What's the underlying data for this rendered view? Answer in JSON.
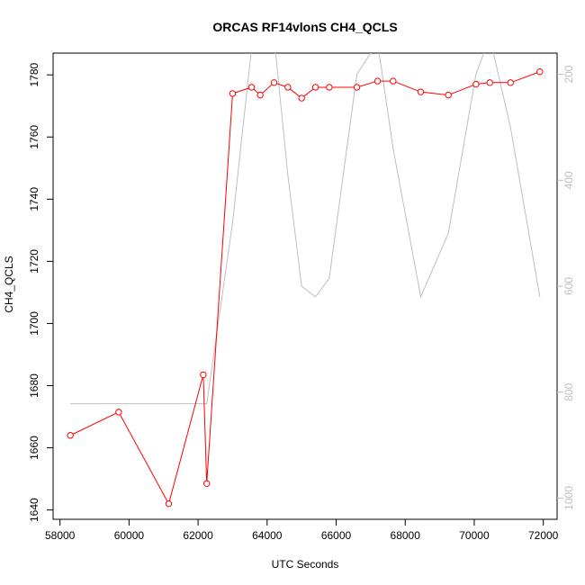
{
  "chart_data": {
    "type": "line",
    "title": "ORCAS RF14vlonS CH4_QCLS",
    "xlabel": "UTC Seconds",
    "ylabel": "CH4_QCLS",
    "xlim": [
      57800,
      72400
    ],
    "ylim": [
      1637,
      1787
    ],
    "y2lim": [
      1040,
      160
    ],
    "y2_reversed": true,
    "x_ticks": [
      58000,
      60000,
      62000,
      64000,
      66000,
      68000,
      70000,
      72000
    ],
    "y_ticks": [
      1640,
      1660,
      1680,
      1700,
      1720,
      1740,
      1760,
      1780
    ],
    "y2_ticks": [
      200,
      400,
      600,
      800,
      1000
    ],
    "grid": false,
    "series": [
      {
        "axis": "left",
        "color": "#ff0000",
        "markers": "open-circle",
        "x": [
          58300,
          59700,
          61150,
          62150,
          62250,
          63000,
          63550,
          63800,
          64200,
          64600,
          65000,
          65400,
          65800,
          66600,
          67200,
          67650,
          68450,
          69250,
          70050,
          70450,
          71050,
          71900
        ],
        "y": [
          1664,
          1671.5,
          1642,
          1683.5,
          1648.5,
          1774,
          1776,
          1773.5,
          1777.5,
          1776,
          1772.5,
          1776,
          1776,
          1776,
          1778,
          1778,
          1774.5,
          1773.5,
          1777,
          1777.5,
          1777.5,
          1781
        ]
      },
      {
        "axis": "right",
        "color": "#bebebe",
        "markers": "none",
        "x": [
          58300,
          59700,
          61150,
          62150,
          62250,
          63000,
          63550,
          63800,
          64200,
          64600,
          65000,
          65400,
          65800,
          66600,
          67200,
          67650,
          68450,
          69250,
          70050,
          70450,
          71050,
          71900
        ],
        "y": [
          822,
          822,
          822,
          822,
          822,
          480,
          150,
          110,
          130,
          390,
          600,
          620,
          585,
          200,
          140,
          340,
          620,
          500,
          200,
          130,
          300,
          620
        ]
      }
    ]
  }
}
